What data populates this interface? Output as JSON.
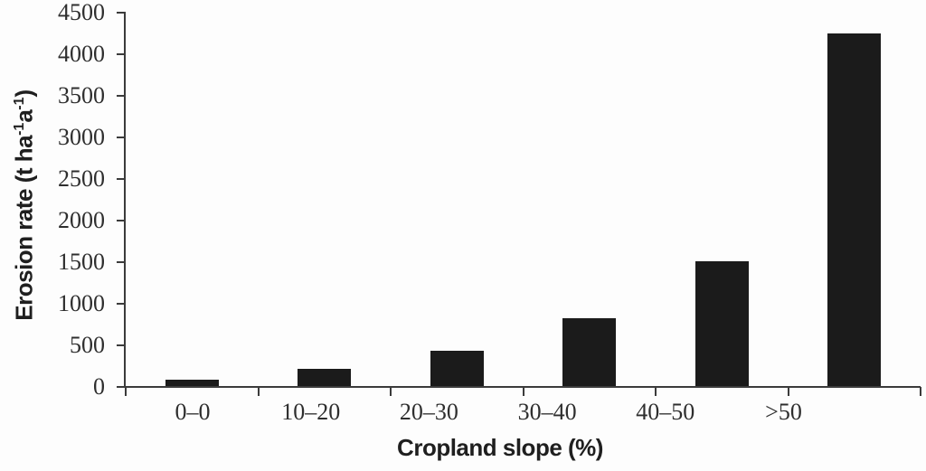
{
  "chart_data": {
    "type": "bar",
    "categories": [
      "0–0",
      "10–20",
      "20–30",
      "30–40",
      "40–50",
      ">50"
    ],
    "values": [
      80,
      210,
      430,
      820,
      1510,
      4250
    ],
    "xlabel": "Cropland slope (%)",
    "ylabel": "Erosion rate (t ha⁻¹a⁻¹)",
    "ylabel_parts": {
      "p1": "Erosion rate (t ha",
      "s1": "-1",
      "p2": "a",
      "s2": "-1",
      "p3": ")"
    },
    "ylim": [
      0,
      4500
    ],
    "ytick_step": 500,
    "grid": false,
    "legend_position": "none",
    "bar_color": "#1b1b1b",
    "axis_color": "#3b3b3b",
    "tick_text_color": "#2e2e2e",
    "title_text_color": "#1f1f1f"
  }
}
